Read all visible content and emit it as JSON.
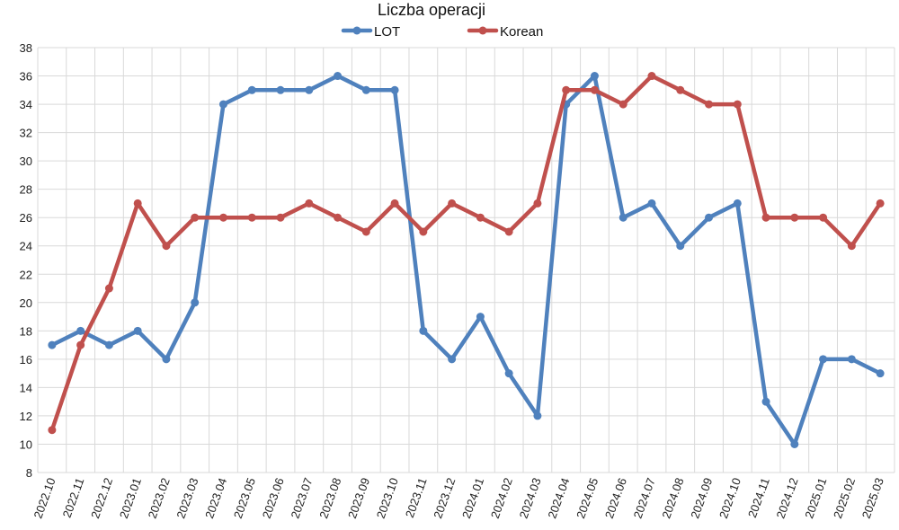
{
  "chart_data": {
    "type": "line",
    "title": "Liczba operacji",
    "xlabel": "",
    "ylabel": "",
    "categories": [
      "2022.10",
      "2022.11",
      "2022.12",
      "2023.01",
      "2023.02",
      "2023.03",
      "2023.04",
      "2023.05",
      "2023.06",
      "2023.07",
      "2023.08",
      "2023.09",
      "2023.10",
      "2023.11",
      "2023.12",
      "2024.01",
      "2024.02",
      "2024.03",
      "2024.04",
      "2024.05",
      "2024.06",
      "2024.07",
      "2024.08",
      "2024.09",
      "2024.10",
      "2024.11",
      "2024.12",
      "2025.01",
      "2025.02",
      "2025.03"
    ],
    "series": [
      {
        "name": "LOT",
        "color": "#4F81BD",
        "values": [
          17,
          18,
          17,
          18,
          16,
          20,
          34,
          35,
          35,
          35,
          36,
          35,
          35,
          18,
          16,
          19,
          15,
          12,
          34,
          36,
          26,
          27,
          24,
          26,
          27,
          13,
          10,
          16,
          16,
          15
        ]
      },
      {
        "name": "Korean",
        "color": "#C0504D",
        "values": [
          11,
          17,
          21,
          27,
          24,
          26,
          26,
          26,
          26,
          27,
          26,
          25,
          27,
          25,
          27,
          26,
          25,
          27,
          35,
          35,
          34,
          36,
          35,
          34,
          34,
          26,
          26,
          26,
          24,
          27
        ]
      }
    ],
    "ylim": [
      8,
      38
    ],
    "ystep": 2,
    "yticks": [
      "8",
      "10",
      "12",
      "14",
      "16",
      "18",
      "20",
      "22",
      "24",
      "26",
      "28",
      "30",
      "32",
      "34",
      "36",
      "38"
    ],
    "grid": true,
    "legend_position": "top-center"
  }
}
